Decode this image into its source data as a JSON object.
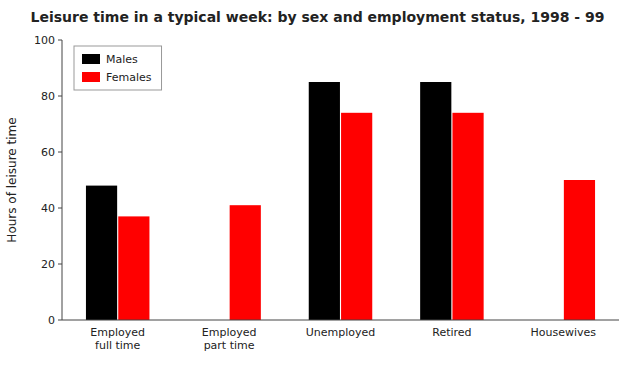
{
  "chart_data": {
    "type": "bar",
    "title": "Leisure time in a typical week: by sex and employment status, 1998 - 99",
    "y_label": "Hours of leisure time",
    "categories": [
      "Employed\nfull time",
      "Employed\npart time",
      "Unemployed",
      "Retired",
      "Housewives"
    ],
    "series": [
      {
        "name": "Males",
        "color": "#000000",
        "values": [
          48,
          0,
          85,
          85,
          0
        ]
      },
      {
        "name": "Females",
        "color": "#ff0000",
        "values": [
          37,
          41,
          74,
          74,
          50
        ]
      }
    ],
    "ylim": [
      0,
      100
    ],
    "yticks": [
      0,
      20,
      40,
      60,
      80,
      100
    ],
    "grid": false,
    "legend": "upper-left"
  }
}
